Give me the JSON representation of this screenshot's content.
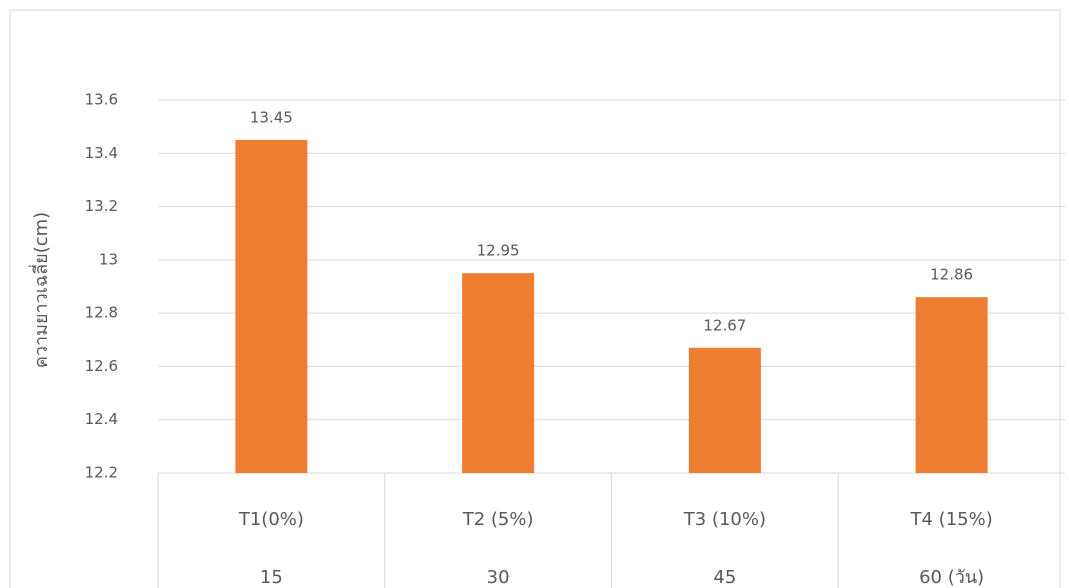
{
  "chart_data": {
    "type": "bar",
    "y_label": "ความยาวเฉลี่ย(cm)",
    "categories": [
      "T1(0%)",
      "T2 (5%)",
      "T3 (10%)",
      "T4 (15%)"
    ],
    "sub_categories": [
      "15",
      "30",
      "45",
      "60 (วัน)"
    ],
    "values": [
      13.45,
      12.95,
      12.67,
      12.86
    ],
    "color": "#ed7d31",
    "ylim": [
      12.2,
      13.6
    ],
    "yticks": [
      12.2,
      12.4,
      12.6,
      12.8,
      13,
      13.2,
      13.4,
      13.6
    ],
    "grid": true
  }
}
